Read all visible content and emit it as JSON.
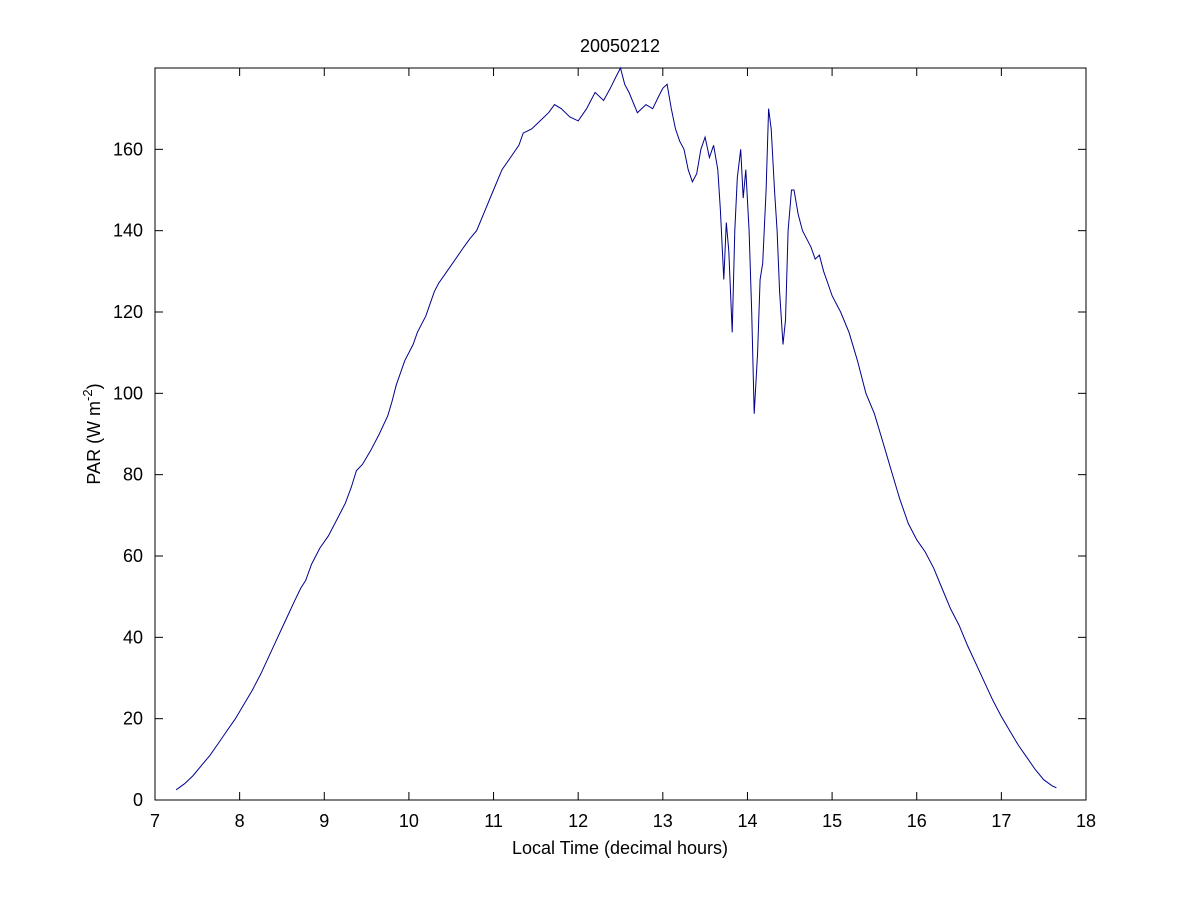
{
  "chart_data": {
    "type": "line",
    "title": "20050212",
    "xlabel": "Local Time (decimal hours)",
    "ylabel": {
      "prefix": "PAR (W m",
      "superscript": "-2",
      "suffix": ")"
    },
    "xlim": [
      7,
      18
    ],
    "ylim": [
      0,
      180
    ],
    "xticks": [
      7,
      8,
      9,
      10,
      11,
      12,
      13,
      14,
      15,
      16,
      17,
      18
    ],
    "yticks": [
      0,
      20,
      40,
      60,
      80,
      100,
      120,
      140,
      160
    ],
    "grid": false,
    "line_color": "#00008b",
    "series": [
      {
        "x": [
          7.25,
          7.35,
          7.45,
          7.55,
          7.65,
          7.75,
          7.85,
          7.95,
          8.05,
          8.15,
          8.25,
          8.35,
          8.45,
          8.55,
          8.65,
          8.72,
          8.75,
          8.78,
          8.85,
          8.95,
          9.05,
          9.15,
          9.25,
          9.32,
          9.38,
          9.45,
          9.55,
          9.65,
          9.75,
          9.8,
          9.85,
          9.95,
          10.05,
          10.1,
          10.2,
          10.3,
          10.35,
          10.45,
          10.55,
          10.65,
          10.72,
          10.8,
          10.9,
          11.0,
          11.1,
          11.2,
          11.3,
          11.35,
          11.45,
          11.55,
          11.65,
          11.72,
          11.8,
          11.9,
          12.0,
          12.1,
          12.2,
          12.3,
          12.38,
          12.45,
          12.5,
          12.55,
          12.6,
          12.7,
          12.8,
          12.88,
          12.95,
          13.0,
          13.05,
          13.1,
          13.15,
          13.2,
          13.25,
          13.3,
          13.35,
          13.4,
          13.45,
          13.5,
          13.55,
          13.6,
          13.65,
          13.68,
          13.72,
          13.75,
          13.78,
          13.82,
          13.85,
          13.88,
          13.92,
          13.95,
          13.98,
          14.02,
          14.05,
          14.08,
          14.12,
          14.15,
          14.18,
          14.22,
          14.25,
          14.28,
          14.32,
          14.35,
          14.38,
          14.42,
          14.45,
          14.48,
          14.52,
          14.55,
          14.6,
          14.65,
          14.7,
          14.75,
          14.8,
          14.85,
          14.9,
          14.95,
          15.0,
          15.1,
          15.2,
          15.3,
          15.4,
          15.5,
          15.6,
          15.7,
          15.8,
          15.9,
          16.0,
          16.1,
          16.2,
          16.3,
          16.4,
          16.5,
          16.6,
          16.7,
          16.8,
          16.9,
          17.0,
          17.1,
          17.2,
          17.3,
          17.4,
          17.5,
          17.6,
          17.65
        ],
        "y": [
          2.5,
          4.0,
          6.0,
          8.5,
          11.0,
          14.0,
          17.0,
          20.0,
          23.5,
          27.0,
          31.0,
          35.5,
          40.0,
          44.5,
          49.0,
          52.0,
          53.0,
          54.0,
          58.0,
          62.0,
          65.0,
          69.0,
          73.0,
          77.0,
          81.0,
          82.5,
          86.0,
          90.0,
          94.5,
          98.0,
          102.0,
          108.0,
          112.0,
          115.0,
          119.0,
          125.0,
          127.0,
          130.0,
          133.0,
          136.0,
          138.0,
          140.0,
          145.0,
          150.0,
          155.0,
          158.0,
          161.0,
          164.0,
          165.0,
          167.0,
          169.0,
          171.0,
          170.0,
          168.0,
          167.0,
          170.0,
          174.0,
          172.0,
          175.0,
          178.0,
          180.0,
          176.0,
          174.0,
          169.0,
          171.0,
          170.0,
          173.0,
          175.0,
          176.0,
          170.0,
          165.0,
          162.0,
          160.0,
          155.0,
          152.0,
          154.0,
          160.0,
          163.0,
          158.0,
          161.0,
          155.0,
          145.0,
          128.0,
          142.0,
          135.0,
          115.0,
          140.0,
          153.0,
          160.0,
          148.0,
          155.0,
          140.0,
          120.0,
          95.0,
          110.0,
          128.0,
          132.0,
          150.0,
          170.0,
          165.0,
          150.0,
          140.0,
          125.0,
          112.0,
          118.0,
          140.0,
          150.0,
          150.0,
          144.0,
          140.0,
          138.0,
          136.0,
          133.0,
          134.0,
          130.0,
          127.0,
          124.0,
          120.0,
          115.0,
          108.0,
          100.0,
          95.0,
          88.0,
          81.0,
          74.0,
          68.0,
          64.0,
          61.0,
          57.0,
          52.0,
          47.0,
          43.0,
          38.0,
          33.5,
          29.0,
          24.5,
          20.5,
          17.0,
          13.5,
          10.5,
          7.5,
          5.0,
          3.5,
          3.0
        ]
      }
    ]
  }
}
